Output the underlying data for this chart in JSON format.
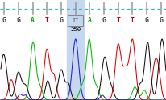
{
  "bases": [
    "G",
    "G",
    "A",
    "T",
    "G",
    "II",
    "A",
    "G",
    "T",
    "T",
    "G",
    "G"
  ],
  "base_colors": [
    "#333333",
    "#333333",
    "#00aa00",
    "#cc0000",
    "#333333",
    "#777777",
    "#00aa00",
    "#333333",
    "#cc0000",
    "#cc0000",
    "#333333",
    "#333333"
  ],
  "highlight_idx": 5,
  "highlight_label": "250",
  "highlight_color": "#c5d8f0",
  "tick_color": "#999999",
  "dash_color": "#30b8b8",
  "n_bases": 12,
  "color_A": "#00bb00",
  "color_T": "#dd0000",
  "color_G": "#111111",
  "color_C": "#2222cc",
  "figw": 2.07,
  "figh": 1.25,
  "dpi": 100
}
